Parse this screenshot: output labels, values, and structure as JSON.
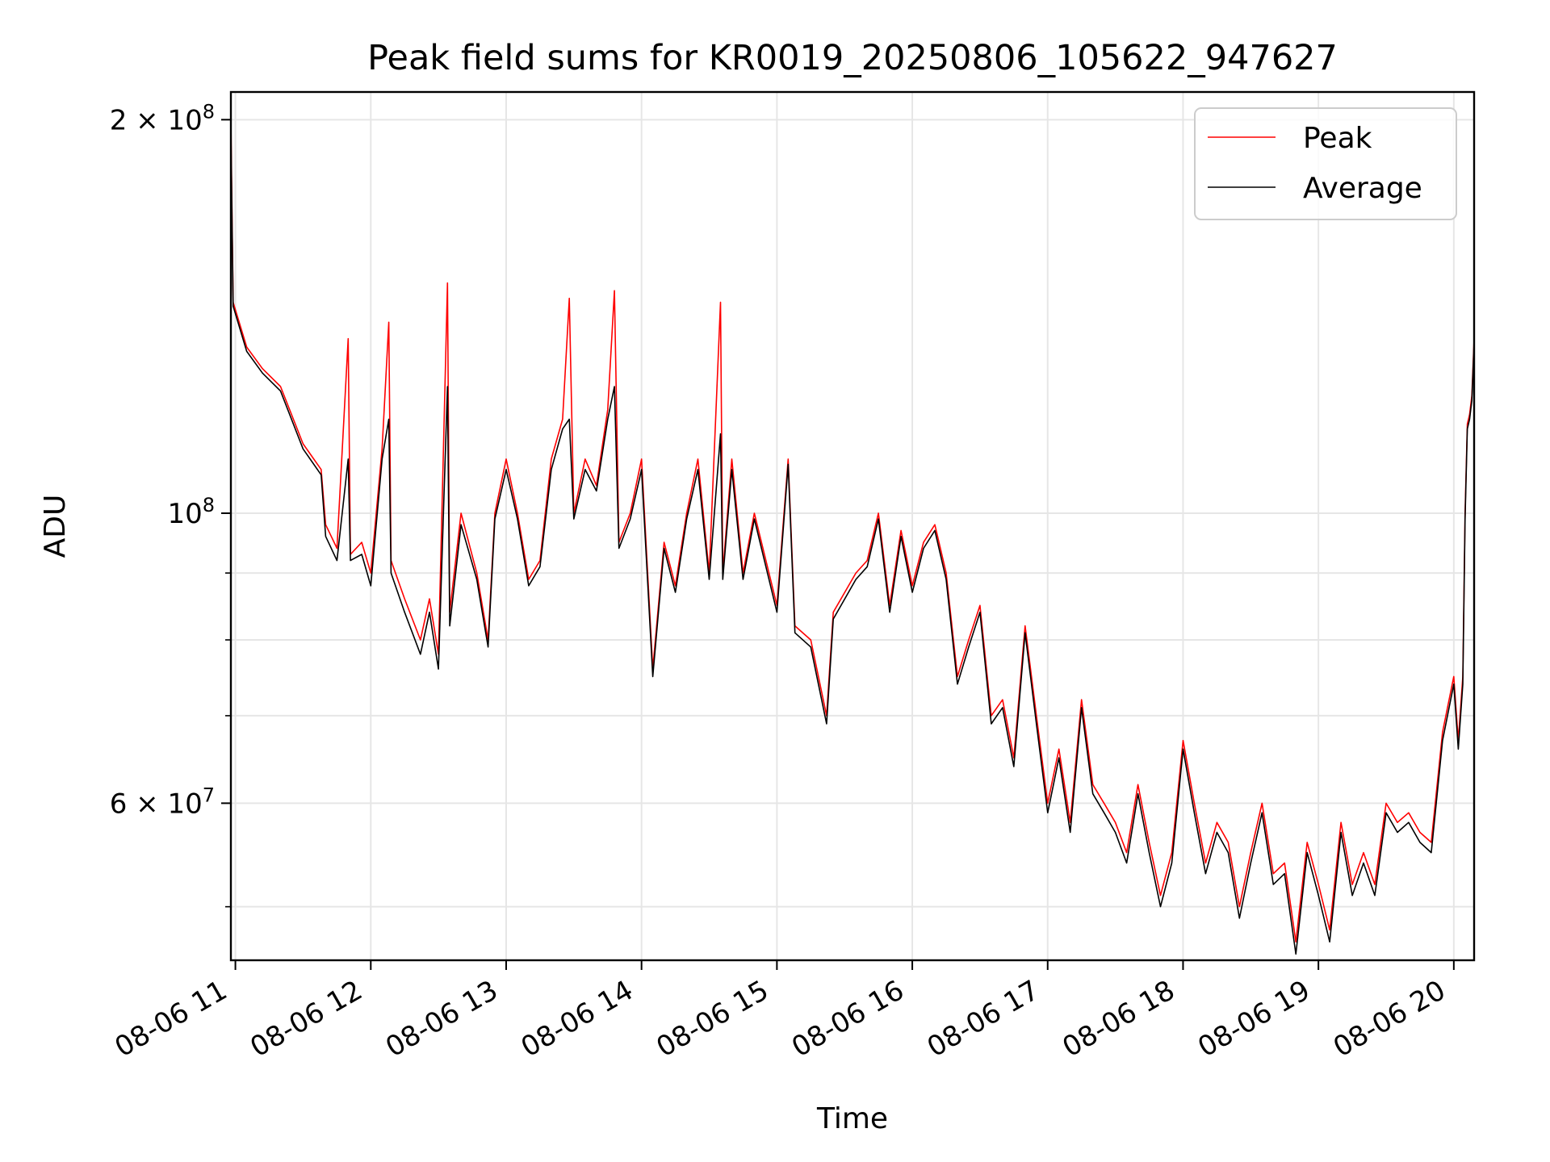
{
  "chart_data": {
    "type": "line",
    "title": "Peak field sums for KR0019_20250806_105622_947627",
    "xlabel": "Time",
    "ylabel": "ADU",
    "y_scale": "log",
    "xlim": [
      "08-06 10:58",
      "08-06 20:09"
    ],
    "ylim": [
      45500000,
      210000000
    ],
    "grid": true,
    "legend_position": "top-right",
    "x_ticks": [
      "08-06 11",
      "08-06 12",
      "08-06 13",
      "08-06 14",
      "08-06 15",
      "08-06 16",
      "08-06 17",
      "08-06 18",
      "08-06 19",
      "08-06 20"
    ],
    "y_ticks": [
      {
        "value": 200000000,
        "base": "2",
        "mult": "×",
        "pow": "10",
        "exp": "8"
      },
      {
        "value": 100000000,
        "base": "",
        "mult": "",
        "pow": "10",
        "exp": "8"
      },
      {
        "value": 60000000,
        "base": "6",
        "mult": "×",
        "pow": "10",
        "exp": "7"
      }
    ],
    "y_minor_ticks": [
      50000000,
      70000000,
      80000000,
      90000000
    ],
    "series": [
      {
        "name": "Peak",
        "color": "#ff0000",
        "points": [
          [
            "08-06 10:58",
            200000000
          ],
          [
            "08-06 10:59",
            145000000
          ],
          [
            "08-06 11:05",
            134000000
          ],
          [
            "08-06 11:12",
            129000000
          ],
          [
            "08-06 11:20",
            125000000
          ],
          [
            "08-06 11:30",
            113000000
          ],
          [
            "08-06 11:38",
            108000000
          ],
          [
            "08-06 11:40",
            98000000
          ],
          [
            "08-06 11:45",
            94000000
          ],
          [
            "08-06 11:50",
            136000000
          ],
          [
            "08-06 11:51",
            93000000
          ],
          [
            "08-06 11:56",
            95000000
          ],
          [
            "08-06 12:00",
            90000000
          ],
          [
            "08-06 12:05",
            112000000
          ],
          [
            "08-06 12:08",
            140000000
          ],
          [
            "08-06 12:09",
            92000000
          ],
          [
            "08-06 12:15",
            86000000
          ],
          [
            "08-06 12:22",
            80000000
          ],
          [
            "08-06 12:26",
            86000000
          ],
          [
            "08-06 12:30",
            78000000
          ],
          [
            "08-06 12:34",
            150000000
          ],
          [
            "08-06 12:35",
            84000000
          ],
          [
            "08-06 12:40",
            100000000
          ],
          [
            "08-06 12:47",
            90000000
          ],
          [
            "08-06 12:52",
            80000000
          ],
          [
            "08-06 12:55",
            100000000
          ],
          [
            "08-06 13:00",
            110000000
          ],
          [
            "08-06 13:05",
            100000000
          ],
          [
            "08-06 13:10",
            89000000
          ],
          [
            "08-06 13:15",
            92000000
          ],
          [
            "08-06 13:20",
            110000000
          ],
          [
            "08-06 13:25",
            118000000
          ],
          [
            "08-06 13:28",
            146000000
          ],
          [
            "08-06 13:30",
            100000000
          ],
          [
            "08-06 13:35",
            110000000
          ],
          [
            "08-06 13:40",
            105000000
          ],
          [
            "08-06 13:45",
            120000000
          ],
          [
            "08-06 13:48",
            148000000
          ],
          [
            "08-06 13:50",
            95000000
          ],
          [
            "08-06 13:55",
            100000000
          ],
          [
            "08-06 14:00",
            110000000
          ],
          [
            "08-06 14:05",
            76000000
          ],
          [
            "08-06 14:10",
            95000000
          ],
          [
            "08-06 14:15",
            88000000
          ],
          [
            "08-06 14:20",
            100000000
          ],
          [
            "08-06 14:25",
            110000000
          ],
          [
            "08-06 14:30",
            90000000
          ],
          [
            "08-06 14:35",
            145000000
          ],
          [
            "08-06 14:36",
            90000000
          ],
          [
            "08-06 14:40",
            110000000
          ],
          [
            "08-06 14:45",
            90000000
          ],
          [
            "08-06 14:50",
            100000000
          ],
          [
            "08-06 15:00",
            85000000
          ],
          [
            "08-06 15:05",
            110000000
          ],
          [
            "08-06 15:08",
            82000000
          ],
          [
            "08-06 15:15",
            80000000
          ],
          [
            "08-06 15:22",
            70000000
          ],
          [
            "08-06 15:25",
            84000000
          ],
          [
            "08-06 15:35",
            90000000
          ],
          [
            "08-06 15:40",
            92000000
          ],
          [
            "08-06 15:45",
            100000000
          ],
          [
            "08-06 15:50",
            85000000
          ],
          [
            "08-06 15:55",
            97000000
          ],
          [
            "08-06 16:00",
            88000000
          ],
          [
            "08-06 16:05",
            95000000
          ],
          [
            "08-06 16:10",
            98000000
          ],
          [
            "08-06 16:15",
            90000000
          ],
          [
            "08-06 16:20",
            75000000
          ],
          [
            "08-06 16:25",
            80000000
          ],
          [
            "08-06 16:30",
            85000000
          ],
          [
            "08-06 16:35",
            70000000
          ],
          [
            "08-06 16:40",
            72000000
          ],
          [
            "08-06 16:45",
            65000000
          ],
          [
            "08-06 16:50",
            82000000
          ],
          [
            "08-06 16:55",
            70000000
          ],
          [
            "08-06 17:00",
            60000000
          ],
          [
            "08-06 17:05",
            66000000
          ],
          [
            "08-06 17:10",
            58000000
          ],
          [
            "08-06 17:15",
            72000000
          ],
          [
            "08-06 17:20",
            62000000
          ],
          [
            "08-06 17:25",
            60000000
          ],
          [
            "08-06 17:30",
            58000000
          ],
          [
            "08-06 17:35",
            55000000
          ],
          [
            "08-06 17:40",
            62000000
          ],
          [
            "08-06 17:45",
            56000000
          ],
          [
            "08-06 17:50",
            51000000
          ],
          [
            "08-06 17:55",
            55000000
          ],
          [
            "08-06 18:00",
            67000000
          ],
          [
            "08-06 18:05",
            60000000
          ],
          [
            "08-06 18:10",
            54000000
          ],
          [
            "08-06 18:15",
            58000000
          ],
          [
            "08-06 18:20",
            56000000
          ],
          [
            "08-06 18:25",
            50000000
          ],
          [
            "08-06 18:30",
            55000000
          ],
          [
            "08-06 18:35",
            60000000
          ],
          [
            "08-06 18:40",
            53000000
          ],
          [
            "08-06 18:45",
            54000000
          ],
          [
            "08-06 18:50",
            47000000
          ],
          [
            "08-06 18:55",
            56000000
          ],
          [
            "08-06 19:00",
            52000000
          ],
          [
            "08-06 19:05",
            48000000
          ],
          [
            "08-06 19:10",
            58000000
          ],
          [
            "08-06 19:15",
            52000000
          ],
          [
            "08-06 19:20",
            55000000
          ],
          [
            "08-06 19:25",
            52000000
          ],
          [
            "08-06 19:30",
            60000000
          ],
          [
            "08-06 19:35",
            58000000
          ],
          [
            "08-06 19:40",
            59000000
          ],
          [
            "08-06 19:45",
            57000000
          ],
          [
            "08-06 19:50",
            56000000
          ],
          [
            "08-06 19:55",
            68000000
          ],
          [
            "08-06 20:00",
            75000000
          ],
          [
            "08-06 20:02",
            67000000
          ],
          [
            "08-06 20:04",
            75000000
          ],
          [
            "08-06 20:05",
            100000000
          ],
          [
            "08-06 20:06",
            117000000
          ],
          [
            "08-06 20:07",
            119000000
          ],
          [
            "08-06 20:08",
            123000000
          ],
          [
            "08-06 20:09",
            136000000
          ]
        ]
      },
      {
        "name": "Average",
        "color": "#000000",
        "points": [
          [
            "08-06 10:58",
            196000000
          ],
          [
            "08-06 10:59",
            144000000
          ],
          [
            "08-06 11:05",
            133000000
          ],
          [
            "08-06 11:12",
            128000000
          ],
          [
            "08-06 11:20",
            124000000
          ],
          [
            "08-06 11:30",
            112000000
          ],
          [
            "08-06 11:38",
            107000000
          ],
          [
            "08-06 11:40",
            96000000
          ],
          [
            "08-06 11:45",
            92000000
          ],
          [
            "08-06 11:50",
            110000000
          ],
          [
            "08-06 11:51",
            92000000
          ],
          [
            "08-06 11:56",
            93000000
          ],
          [
            "08-06 12:00",
            88000000
          ],
          [
            "08-06 12:05",
            110000000
          ],
          [
            "08-06 12:08",
            118000000
          ],
          [
            "08-06 12:09",
            90000000
          ],
          [
            "08-06 12:15",
            84000000
          ],
          [
            "08-06 12:22",
            78000000
          ],
          [
            "08-06 12:26",
            84000000
          ],
          [
            "08-06 12:30",
            76000000
          ],
          [
            "08-06 12:34",
            125000000
          ],
          [
            "08-06 12:35",
            82000000
          ],
          [
            "08-06 12:40",
            98000000
          ],
          [
            "08-06 12:47",
            89000000
          ],
          [
            "08-06 12:52",
            79000000
          ],
          [
            "08-06 12:55",
            99000000
          ],
          [
            "08-06 13:00",
            108000000
          ],
          [
            "08-06 13:05",
            99000000
          ],
          [
            "08-06 13:10",
            88000000
          ],
          [
            "08-06 13:15",
            91000000
          ],
          [
            "08-06 13:20",
            108000000
          ],
          [
            "08-06 13:25",
            116000000
          ],
          [
            "08-06 13:28",
            118000000
          ],
          [
            "08-06 13:30",
            99000000
          ],
          [
            "08-06 13:35",
            108000000
          ],
          [
            "08-06 13:40",
            104000000
          ],
          [
            "08-06 13:45",
            118000000
          ],
          [
            "08-06 13:48",
            125000000
          ],
          [
            "08-06 13:50",
            94000000
          ],
          [
            "08-06 13:55",
            99000000
          ],
          [
            "08-06 14:00",
            108000000
          ],
          [
            "08-06 14:05",
            75000000
          ],
          [
            "08-06 14:10",
            94000000
          ],
          [
            "08-06 14:15",
            87000000
          ],
          [
            "08-06 14:20",
            99000000
          ],
          [
            "08-06 14:25",
            108000000
          ],
          [
            "08-06 14:30",
            89000000
          ],
          [
            "08-06 14:35",
            115000000
          ],
          [
            "08-06 14:36",
            89000000
          ],
          [
            "08-06 14:40",
            108000000
          ],
          [
            "08-06 14:45",
            89000000
          ],
          [
            "08-06 14:50",
            99000000
          ],
          [
            "08-06 15:00",
            84000000
          ],
          [
            "08-06 15:05",
            109000000
          ],
          [
            "08-06 15:08",
            81000000
          ],
          [
            "08-06 15:15",
            79000000
          ],
          [
            "08-06 15:22",
            69000000
          ],
          [
            "08-06 15:25",
            83000000
          ],
          [
            "08-06 15:35",
            89000000
          ],
          [
            "08-06 15:40",
            91000000
          ],
          [
            "08-06 15:45",
            99000000
          ],
          [
            "08-06 15:50",
            84000000
          ],
          [
            "08-06 15:55",
            96000000
          ],
          [
            "08-06 16:00",
            87000000
          ],
          [
            "08-06 16:05",
            94000000
          ],
          [
            "08-06 16:10",
            97000000
          ],
          [
            "08-06 16:15",
            89000000
          ],
          [
            "08-06 16:20",
            74000000
          ],
          [
            "08-06 16:25",
            79000000
          ],
          [
            "08-06 16:30",
            84000000
          ],
          [
            "08-06 16:35",
            69000000
          ],
          [
            "08-06 16:40",
            71000000
          ],
          [
            "08-06 16:45",
            64000000
          ],
          [
            "08-06 16:50",
            81000000
          ],
          [
            "08-06 16:55",
            69000000
          ],
          [
            "08-06 17:00",
            59000000
          ],
          [
            "08-06 17:05",
            65000000
          ],
          [
            "08-06 17:10",
            57000000
          ],
          [
            "08-06 17:15",
            71000000
          ],
          [
            "08-06 17:20",
            61000000
          ],
          [
            "08-06 17:25",
            59000000
          ],
          [
            "08-06 17:30",
            57000000
          ],
          [
            "08-06 17:35",
            54000000
          ],
          [
            "08-06 17:40",
            61000000
          ],
          [
            "08-06 17:45",
            55000000
          ],
          [
            "08-06 17:50",
            50000000
          ],
          [
            "08-06 17:55",
            54000000
          ],
          [
            "08-06 18:00",
            66000000
          ],
          [
            "08-06 18:05",
            59000000
          ],
          [
            "08-06 18:10",
            53000000
          ],
          [
            "08-06 18:15",
            57000000
          ],
          [
            "08-06 18:20",
            55000000
          ],
          [
            "08-06 18:25",
            49000000
          ],
          [
            "08-06 18:30",
            54000000
          ],
          [
            "08-06 18:35",
            59000000
          ],
          [
            "08-06 18:40",
            52000000
          ],
          [
            "08-06 18:45",
            53000000
          ],
          [
            "08-06 18:50",
            46000000
          ],
          [
            "08-06 18:55",
            55000000
          ],
          [
            "08-06 19:00",
            51000000
          ],
          [
            "08-06 19:05",
            47000000
          ],
          [
            "08-06 19:10",
            57000000
          ],
          [
            "08-06 19:15",
            51000000
          ],
          [
            "08-06 19:20",
            54000000
          ],
          [
            "08-06 19:25",
            51000000
          ],
          [
            "08-06 19:30",
            59000000
          ],
          [
            "08-06 19:35",
            57000000
          ],
          [
            "08-06 19:40",
            58000000
          ],
          [
            "08-06 19:45",
            56000000
          ],
          [
            "08-06 19:50",
            55000000
          ],
          [
            "08-06 19:55",
            67000000
          ],
          [
            "08-06 20:00",
            74000000
          ],
          [
            "08-06 20:02",
            66000000
          ],
          [
            "08-06 20:04",
            74000000
          ],
          [
            "08-06 20:05",
            99000000
          ],
          [
            "08-06 20:06",
            116000000
          ],
          [
            "08-06 20:07",
            118000000
          ],
          [
            "08-06 20:08",
            122000000
          ],
          [
            "08-06 20:09",
            135000000
          ]
        ]
      }
    ]
  },
  "colors": {
    "grid": "#e6e6e6",
    "axes": "#000000",
    "legend_border": "#cccccc"
  }
}
